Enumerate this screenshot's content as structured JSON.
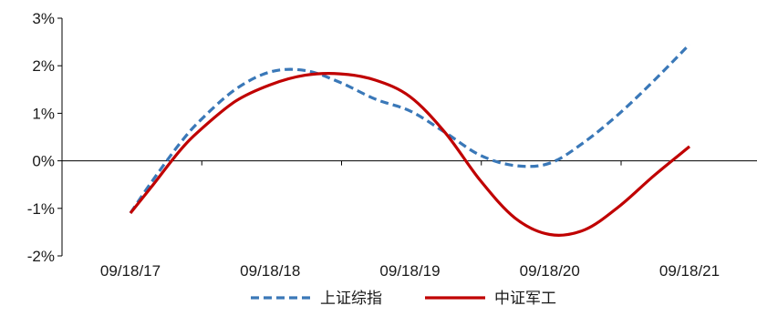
{
  "chart_data": {
    "type": "line",
    "categories": [
      "09/18/17",
      "09/18/18",
      "09/18/19",
      "09/18/20",
      "09/18/21"
    ],
    "x": [
      0,
      0.15,
      0.35,
      0.5,
      0.75,
      1.0,
      1.25,
      1.5,
      1.75,
      2.0,
      2.25,
      2.5,
      2.75,
      3.0,
      3.25,
      3.5,
      3.75,
      4.0
    ],
    "series": [
      {
        "name": "上证综指",
        "color": "#3a78b8",
        "style": "dashed",
        "values": [
          -1.1,
          -0.45,
          0.35,
          0.85,
          1.5,
          1.87,
          1.9,
          1.65,
          1.3,
          1.05,
          0.6,
          0.12,
          -0.1,
          -0.05,
          0.4,
          1.0,
          1.7,
          2.45
        ]
      },
      {
        "name": "中证军工",
        "color": "#c00000",
        "style": "solid",
        "values": [
          -1.1,
          -0.55,
          0.2,
          0.65,
          1.25,
          1.6,
          1.8,
          1.83,
          1.7,
          1.35,
          0.6,
          -0.4,
          -1.2,
          -1.55,
          -1.45,
          -0.95,
          -0.3,
          0.3
        ]
      }
    ],
    "ylim": [
      -2,
      3
    ],
    "yticks": [
      -2,
      -1,
      0,
      1,
      2,
      3
    ],
    "ytick_labels": [
      "-2%",
      "-1%",
      "0%",
      "1%",
      "2%",
      "3%"
    ],
    "xlabel": "",
    "ylabel": "",
    "legend_position": "bottom-center"
  }
}
